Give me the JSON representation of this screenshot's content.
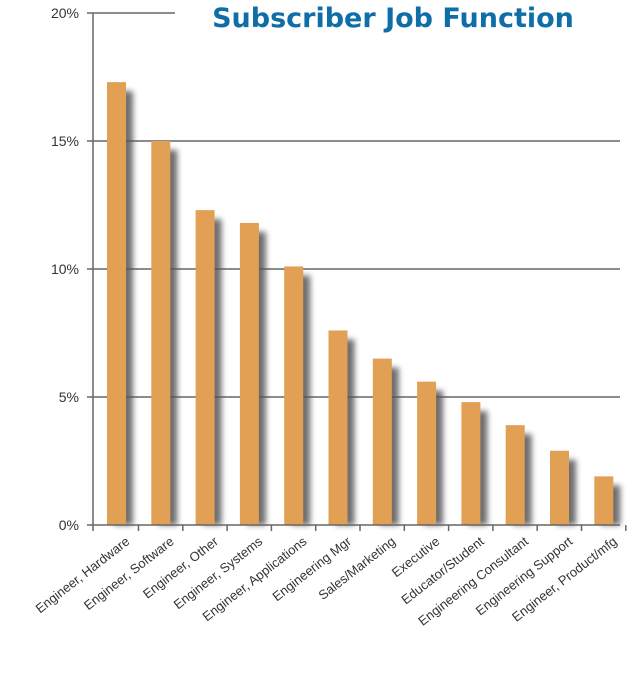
{
  "chart_data": {
    "type": "bar",
    "title": "Subscriber Job Function",
    "xlabel": "",
    "ylabel": "",
    "ylim": [
      0,
      20
    ],
    "y_ticks": [
      0,
      5,
      10,
      15,
      20
    ],
    "y_tick_labels": [
      "0%",
      "5%",
      "10%",
      "15%",
      "20%"
    ],
    "grid": true,
    "legend": "none",
    "categories": [
      "Engineer, Hardware",
      "Engineer, Software",
      "Engineer, Other",
      "Engineer, Systems",
      "Engineer, Applications",
      "Engineering Mgr",
      "Sales/Marketing",
      "Executive",
      "Educator/Student",
      "Engineering Consultant",
      "Engineering Support",
      "Engineer, Product/mfg"
    ],
    "values": [
      17.3,
      15.0,
      12.3,
      11.8,
      10.1,
      7.6,
      6.5,
      5.6,
      4.8,
      3.9,
      2.9,
      1.9
    ],
    "colors": {
      "bar": "#e2a055",
      "shadow": "#555555",
      "title": "#0f6ea8",
      "axis": "#666666"
    }
  }
}
